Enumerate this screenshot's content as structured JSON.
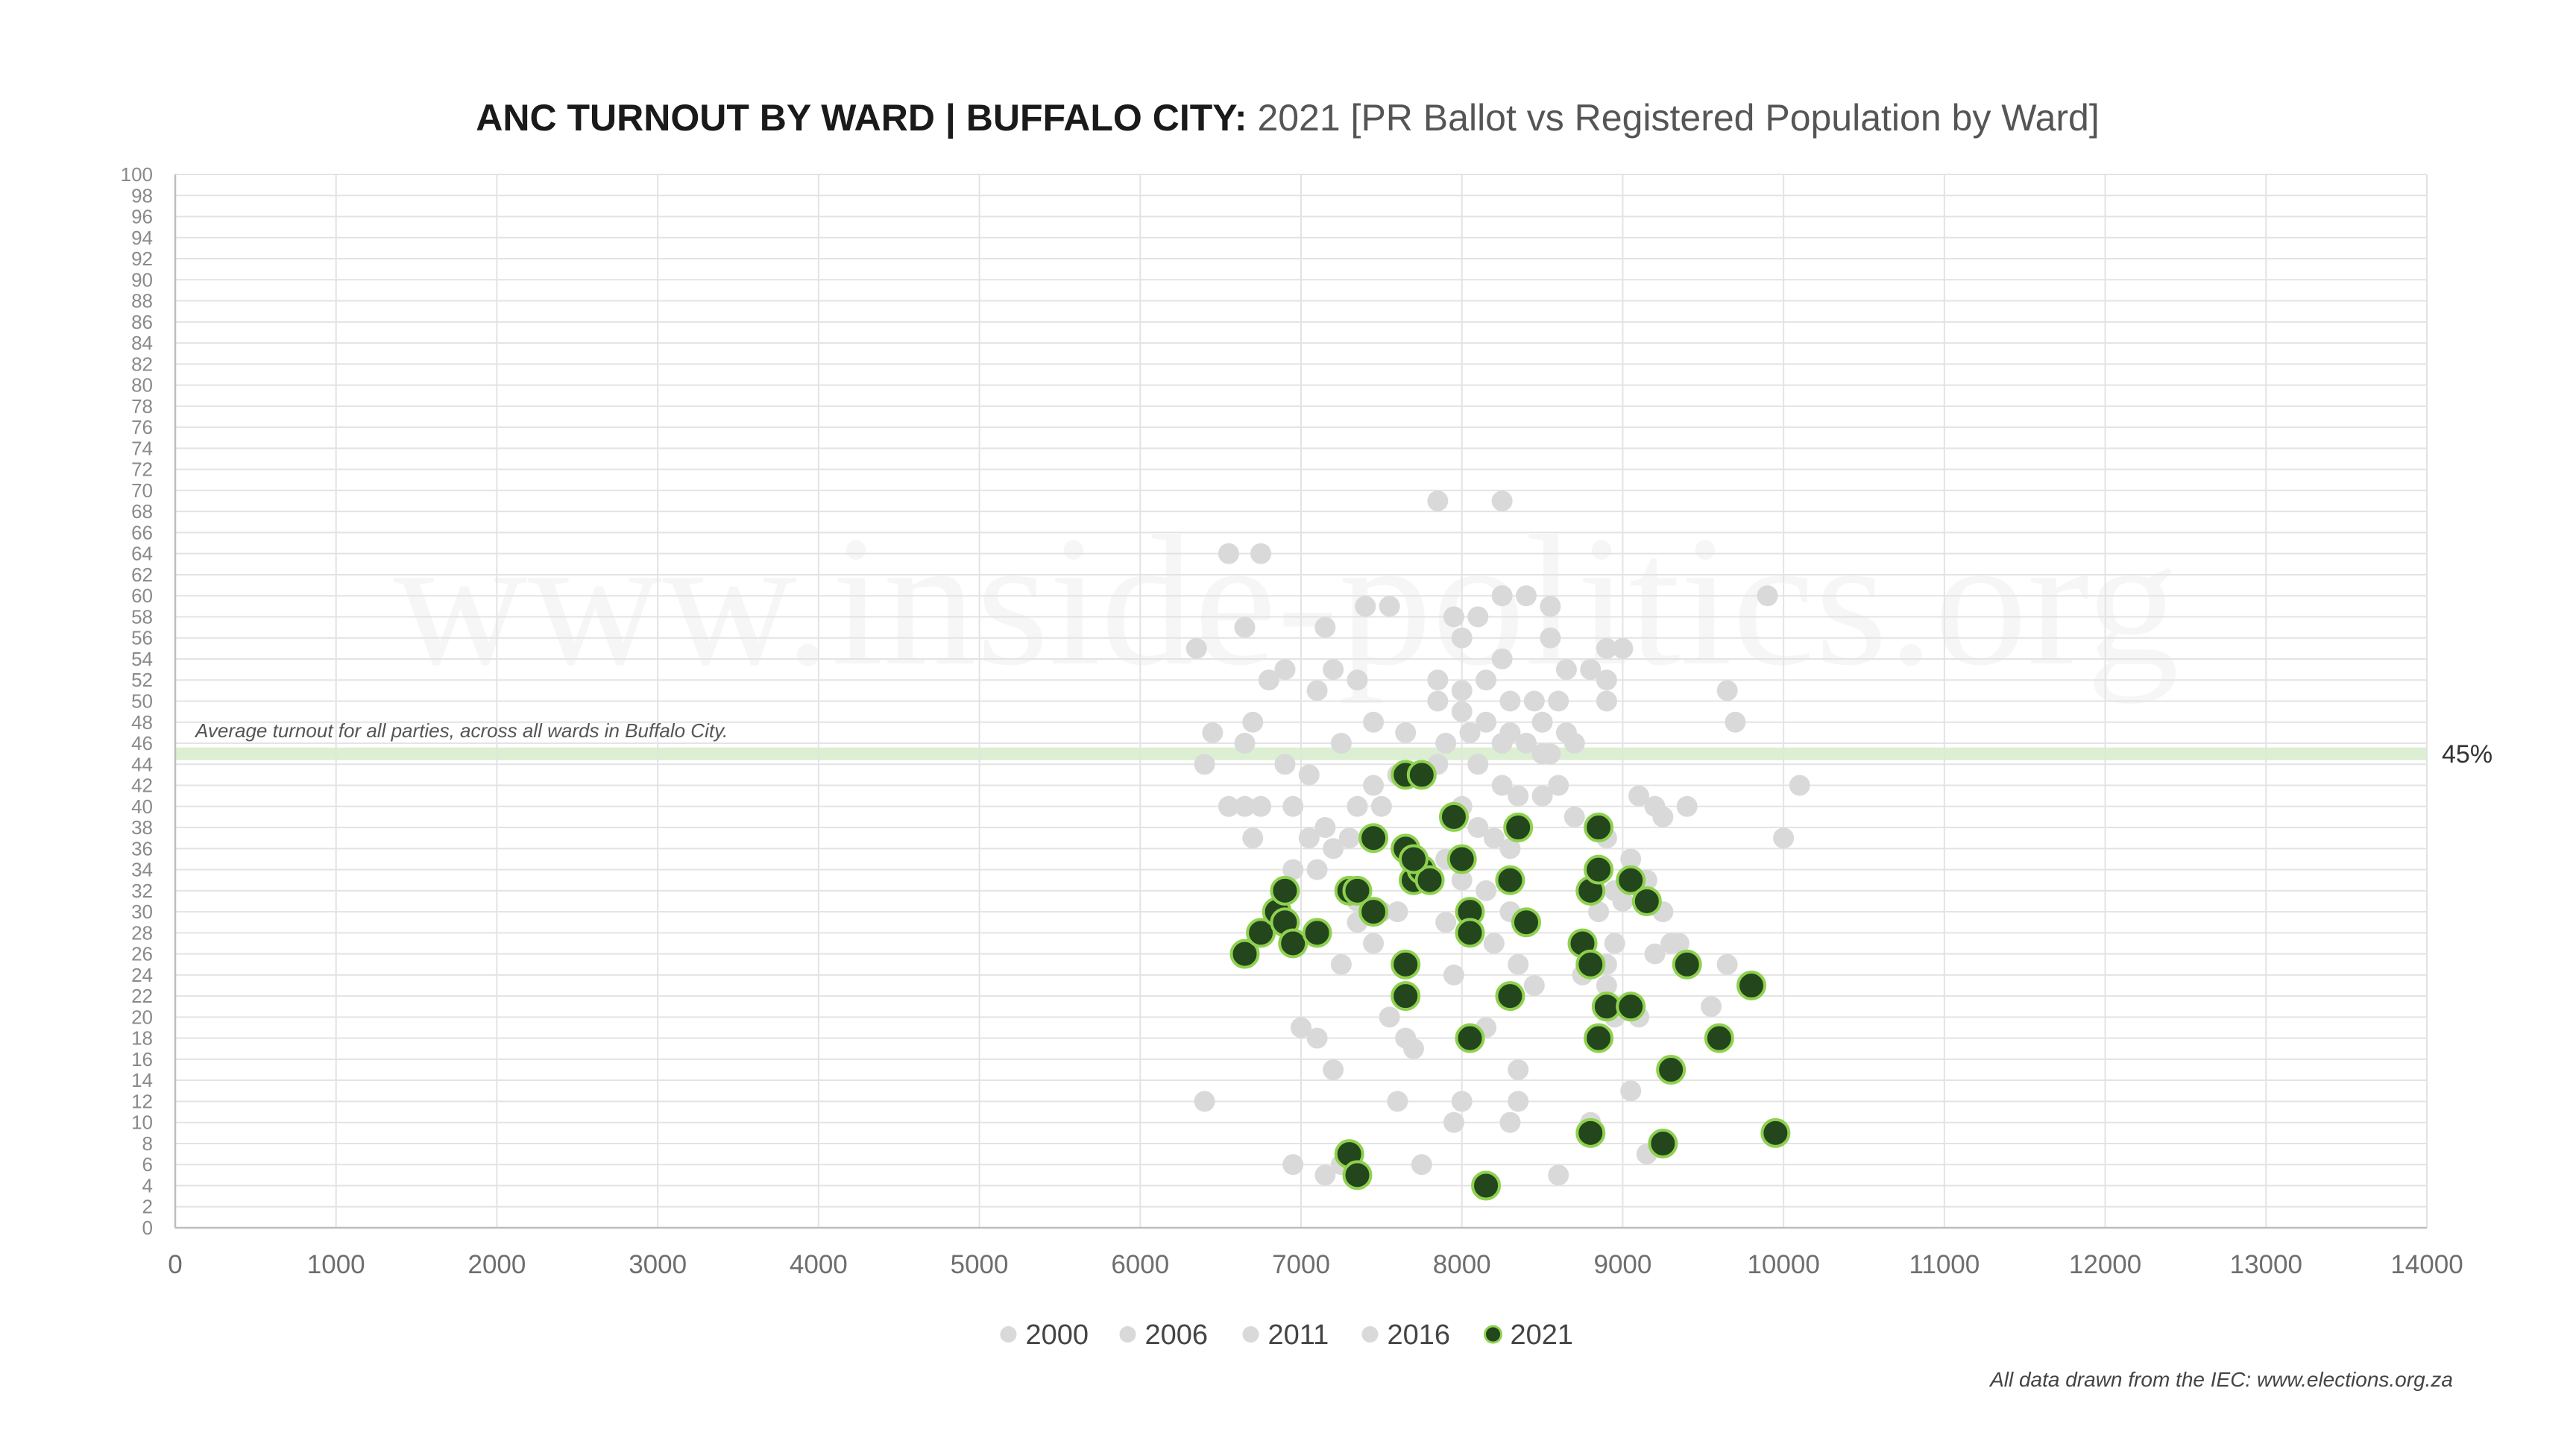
{
  "chart_data": {
    "type": "scatter",
    "title_bold": "ANC TURNOUT BY WARD | BUFFALO CITY:",
    "title_rest": " 2021 [PR Ballot vs Registered Population by Ward]",
    "xlabel": "",
    "ylabel": "",
    "xlim": [
      0,
      14000
    ],
    "ylim": [
      0,
      100
    ],
    "x_ticks": [
      0,
      1000,
      2000,
      3000,
      4000,
      5000,
      6000,
      7000,
      8000,
      9000,
      10000,
      11000,
      12000,
      13000,
      14000
    ],
    "y_tick_step": 2,
    "grid": true,
    "legend_position": "bottom",
    "annotation": {
      "text": "Average turnout for all parties, across all wards in Buffalo City.",
      "value": 45,
      "label": "45%"
    },
    "watermark": "www.inside-politics.org",
    "source": "All data drawn from the IEC: www.elections.org.za",
    "colors": {
      "background_series": "#d9d9d9",
      "series_2021_fill": "#23461c",
      "series_2021_stroke": "#8fd14f",
      "average_band": "#dcefd2"
    },
    "series": [
      {
        "name": "2000",
        "points": [
          [
            6350,
            55
          ],
          [
            6550,
            64
          ],
          [
            6750,
            64
          ],
          [
            6650,
            57
          ],
          [
            6800,
            52
          ],
          [
            6900,
            53
          ],
          [
            7150,
            57
          ],
          [
            6700,
            48
          ],
          [
            6450,
            47
          ],
          [
            6650,
            46
          ],
          [
            6400,
            44
          ],
          [
            6550,
            40
          ],
          [
            6650,
            40
          ],
          [
            6750,
            40
          ],
          [
            6900,
            44
          ],
          [
            7050,
            43
          ],
          [
            6700,
            37
          ],
          [
            6950,
            40
          ]
        ]
      },
      {
        "name": "2006",
        "points": [
          [
            7100,
            51
          ],
          [
            7200,
            53
          ],
          [
            7400,
            59
          ],
          [
            7550,
            59
          ],
          [
            7350,
            52
          ],
          [
            7250,
            46
          ],
          [
            7450,
            48
          ],
          [
            7650,
            47
          ],
          [
            7450,
            42
          ],
          [
            7600,
            43
          ],
          [
            7350,
            40
          ],
          [
            7500,
            40
          ],
          [
            7150,
            38
          ],
          [
            7200,
            36
          ],
          [
            7050,
            37
          ],
          [
            7300,
            37
          ],
          [
            6950,
            34
          ],
          [
            7100,
            34
          ],
          [
            7350,
            31
          ],
          [
            7500,
            30
          ],
          [
            7600,
            30
          ],
          [
            7350,
            29
          ],
          [
            7450,
            27
          ],
          [
            7250,
            25
          ]
        ]
      },
      {
        "name": "2011",
        "points": [
          [
            7850,
            69
          ],
          [
            8250,
            69
          ],
          [
            7950,
            58
          ],
          [
            8100,
            58
          ],
          [
            8250,
            60
          ],
          [
            8400,
            60
          ],
          [
            8550,
            59
          ],
          [
            8000,
            56
          ],
          [
            8250,
            54
          ],
          [
            7850,
            52
          ],
          [
            8000,
            51
          ],
          [
            8150,
            52
          ],
          [
            7850,
            50
          ],
          [
            8000,
            49
          ],
          [
            8300,
            50
          ],
          [
            8050,
            47
          ],
          [
            8150,
            48
          ],
          [
            8250,
            46
          ],
          [
            7900,
            46
          ],
          [
            8300,
            47
          ],
          [
            8400,
            46
          ],
          [
            8500,
            45
          ],
          [
            7850,
            44
          ],
          [
            8100,
            44
          ],
          [
            8250,
            42
          ],
          [
            8350,
            41
          ],
          [
            8000,
            40
          ],
          [
            8100,
            38
          ],
          [
            8200,
            37
          ],
          [
            8300,
            36
          ],
          [
            7900,
            35
          ],
          [
            8000,
            33
          ],
          [
            8150,
            32
          ],
          [
            8300,
            30
          ],
          [
            7900,
            29
          ],
          [
            8050,
            28
          ],
          [
            8200,
            27
          ],
          [
            8350,
            25
          ],
          [
            8450,
            23
          ],
          [
            7950,
            24
          ],
          [
            8150,
            19
          ],
          [
            8350,
            15
          ],
          [
            8000,
            12
          ],
          [
            8350,
            12
          ],
          [
            8300,
            10
          ],
          [
            7950,
            10
          ],
          [
            7750,
            6
          ],
          [
            7200,
            15
          ],
          [
            7100,
            18
          ],
          [
            7000,
            19
          ],
          [
            6950,
            6
          ],
          [
            7150,
            5
          ],
          [
            7250,
            6
          ],
          [
            6400,
            12
          ],
          [
            7550,
            20
          ],
          [
            7650,
            18
          ],
          [
            7700,
            17
          ],
          [
            7600,
            12
          ]
        ]
      },
      {
        "name": "2016",
        "points": [
          [
            8550,
            56
          ],
          [
            8650,
            53
          ],
          [
            8800,
            53
          ],
          [
            8900,
            55
          ],
          [
            9000,
            55
          ],
          [
            8900,
            52
          ],
          [
            8900,
            50
          ],
          [
            8600,
            50
          ],
          [
            8450,
            50
          ],
          [
            8500,
            48
          ],
          [
            8650,
            47
          ],
          [
            8700,
            46
          ],
          [
            8550,
            45
          ],
          [
            8600,
            42
          ],
          [
            8500,
            41
          ],
          [
            8700,
            39
          ],
          [
            8900,
            37
          ],
          [
            9100,
            41
          ],
          [
            9200,
            40
          ],
          [
            9250,
            39
          ],
          [
            9400,
            40
          ],
          [
            9050,
            35
          ],
          [
            9150,
            33
          ],
          [
            8950,
            32
          ],
          [
            8850,
            30
          ],
          [
            9000,
            31
          ],
          [
            9250,
            30
          ],
          [
            9300,
            27
          ],
          [
            9350,
            27
          ],
          [
            9200,
            26
          ],
          [
            8950,
            27
          ],
          [
            8900,
            25
          ],
          [
            8750,
            24
          ],
          [
            8900,
            23
          ],
          [
            8950,
            20
          ],
          [
            9100,
            20
          ],
          [
            9550,
            21
          ],
          [
            9650,
            25
          ],
          [
            9900,
            60
          ],
          [
            9650,
            51
          ],
          [
            9700,
            48
          ],
          [
            10100,
            42
          ],
          [
            10000,
            37
          ],
          [
            8600,
            5
          ],
          [
            9150,
            7
          ],
          [
            8800,
            10
          ],
          [
            9050,
            13
          ]
        ]
      },
      {
        "name": "2021",
        "points": [
          [
            6650,
            26
          ],
          [
            6750,
            28
          ],
          [
            6850,
            30
          ],
          [
            6900,
            29
          ],
          [
            6950,
            27
          ],
          [
            6900,
            32
          ],
          [
            7100,
            28
          ],
          [
            7300,
            32
          ],
          [
            7350,
            32
          ],
          [
            7450,
            30
          ],
          [
            7450,
            37
          ],
          [
            7650,
            36
          ],
          [
            7700,
            33
          ],
          [
            7750,
            34
          ],
          [
            7800,
            33
          ],
          [
            7700,
            35
          ],
          [
            7650,
            43
          ],
          [
            7750,
            43
          ],
          [
            7950,
            39
          ],
          [
            8000,
            35
          ],
          [
            8050,
            30
          ],
          [
            8050,
            28
          ],
          [
            8350,
            38
          ],
          [
            8300,
            33
          ],
          [
            8400,
            29
          ],
          [
            8300,
            22
          ],
          [
            7650,
            25
          ],
          [
            7650,
            22
          ],
          [
            8050,
            18
          ],
          [
            8750,
            27
          ],
          [
            8800,
            25
          ],
          [
            8850,
            38
          ],
          [
            8800,
            32
          ],
          [
            8850,
            34
          ],
          [
            9050,
            33
          ],
          [
            9150,
            31
          ],
          [
            8900,
            21
          ],
          [
            9050,
            21
          ],
          [
            9400,
            25
          ],
          [
            8850,
            18
          ],
          [
            9300,
            15
          ],
          [
            9600,
            18
          ],
          [
            9800,
            23
          ],
          [
            8800,
            9
          ],
          [
            9250,
            8
          ],
          [
            9950,
            9
          ],
          [
            7300,
            7
          ],
          [
            7350,
            5
          ],
          [
            8150,
            4
          ]
        ]
      }
    ]
  }
}
